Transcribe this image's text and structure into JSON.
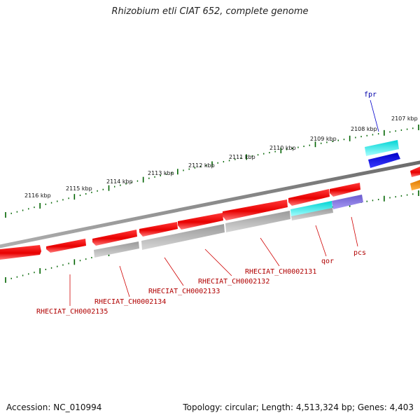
{
  "title": "Rhizobium etli CIAT 652, complete genome",
  "footer": {
    "accession": "Accession: NC_010994",
    "topology": "Topology: circular; Length: 4,513,324 bp; Genes: 4,403"
  },
  "scale_ticks": [
    "2116 kbp",
    "2115 kbp",
    "2114 kbp",
    "2113 kbp",
    "2112 kbp",
    "2111 kbp",
    "2110 kbp",
    "2109 kbp",
    "2108 kbp",
    "2107 kbp"
  ],
  "gene_labels": {
    "fpr": "fpr",
    "qor": "qor",
    "pcs": "pcs",
    "ch2131": "RHECIAT_CH0002131",
    "ch2132": "RHECIAT_CH0002132",
    "ch2133": "RHECIAT_CH0002133",
    "ch2134": "RHECIAT_CH0002134",
    "ch2135": "RHECIAT_CH0002135"
  },
  "colors": {
    "backbone": "#808080",
    "cds_red": "#ff0000",
    "cds_grey": "#a9a9a9",
    "cds_cyan": "#00e6e6",
    "cds_blue": "#0000ee",
    "cds_purple": "#7b68ee",
    "cds_orange": "#ff8c00",
    "tick_green": "#006400",
    "label_red": "#b00000",
    "label_blue": "#0000aa"
  }
}
